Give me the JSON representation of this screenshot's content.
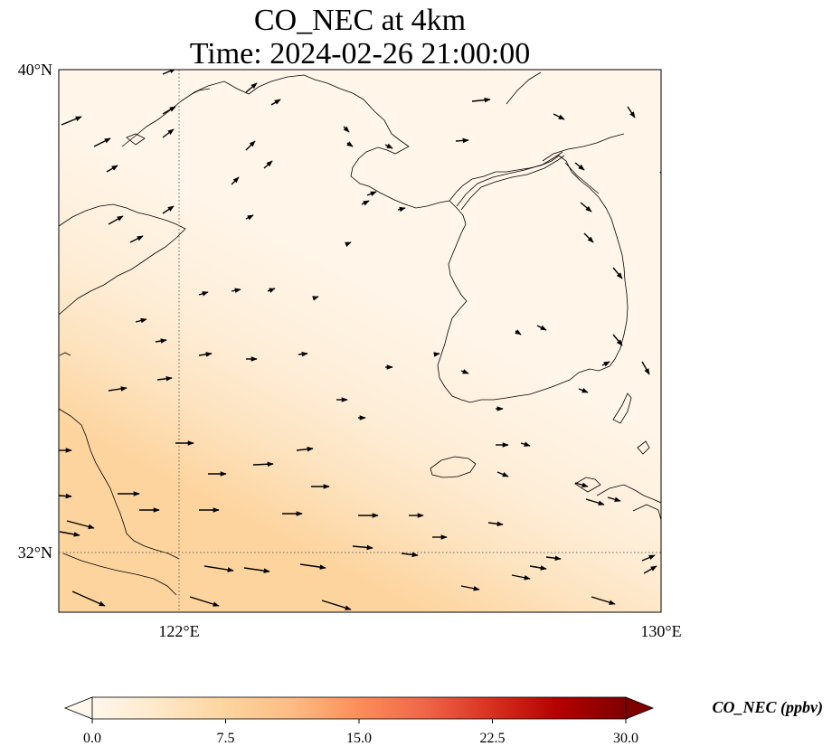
{
  "title": {
    "line1": "CO_NEC at 4km",
    "line2": "Time: 2024-02-26 21:00:00"
  },
  "map": {
    "extent": {
      "lon": [
        120,
        130
      ],
      "lat": [
        31,
        40
      ]
    },
    "gridlines": {
      "lon": [
        122
      ],
      "lat": [
        32
      ]
    },
    "lat_ticks": [
      "40°N",
      "32°N"
    ],
    "lon_ticks": [
      "122°E",
      "130°E"
    ],
    "field": {
      "variable": "CO_NEC",
      "description": "low values in north-east, enhanced band along south-west (Yangtze delta outflow)"
    },
    "wind_vectors": "westerly to north-westerly winds across the Yellow Sea and Korea"
  },
  "colorbar": {
    "label": "CO_NEC (ppbv)",
    "ticks": [
      "0.0",
      "7.5",
      "15.0",
      "22.5",
      "30.0"
    ],
    "range": [
      0,
      30
    ],
    "colors": [
      "#fff7ec",
      "#fee8c8",
      "#fdd49e",
      "#fdbb84",
      "#fc8d59",
      "#ef6548",
      "#d7301f",
      "#b30000",
      "#7f0000"
    ],
    "extend": "both"
  }
}
